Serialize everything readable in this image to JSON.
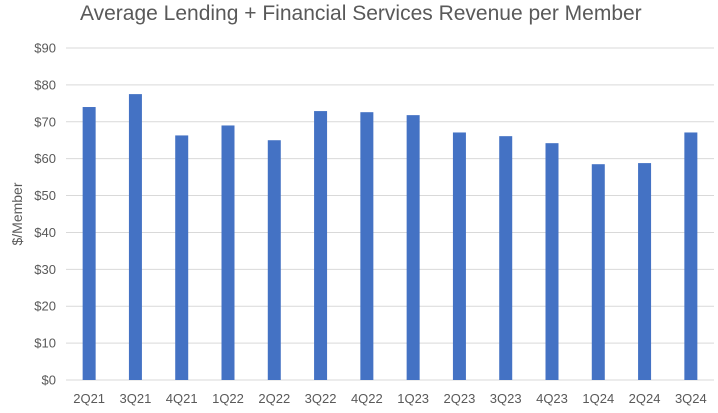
{
  "chart_data": {
    "type": "bar",
    "title": "Average Lending + Financial Services Revenue per Member",
    "xlabel": "",
    "ylabel": "$/Member",
    "categories": [
      "2Q21",
      "3Q21",
      "4Q21",
      "1Q22",
      "2Q22",
      "3Q22",
      "4Q22",
      "1Q23",
      "2Q23",
      "3Q23",
      "4Q23",
      "1Q24",
      "2Q24",
      "3Q24"
    ],
    "values": [
      74,
      77.5,
      66.3,
      69,
      65,
      72.9,
      72.6,
      71.8,
      67.1,
      66.1,
      64.2,
      58.5,
      58.8,
      67.1
    ],
    "ylim": [
      0,
      90
    ],
    "yticks": [
      0,
      10,
      20,
      30,
      40,
      50,
      60,
      70,
      80,
      90
    ],
    "ytick_labels": [
      "$0",
      "$10",
      "$20",
      "$30",
      "$40",
      "$50",
      "$60",
      "$70",
      "$80",
      "$90"
    ],
    "grid": true,
    "legend": "none",
    "colors": {
      "bar": "#4472C4",
      "grid": "#D9D9D9",
      "text": "#595959"
    }
  }
}
